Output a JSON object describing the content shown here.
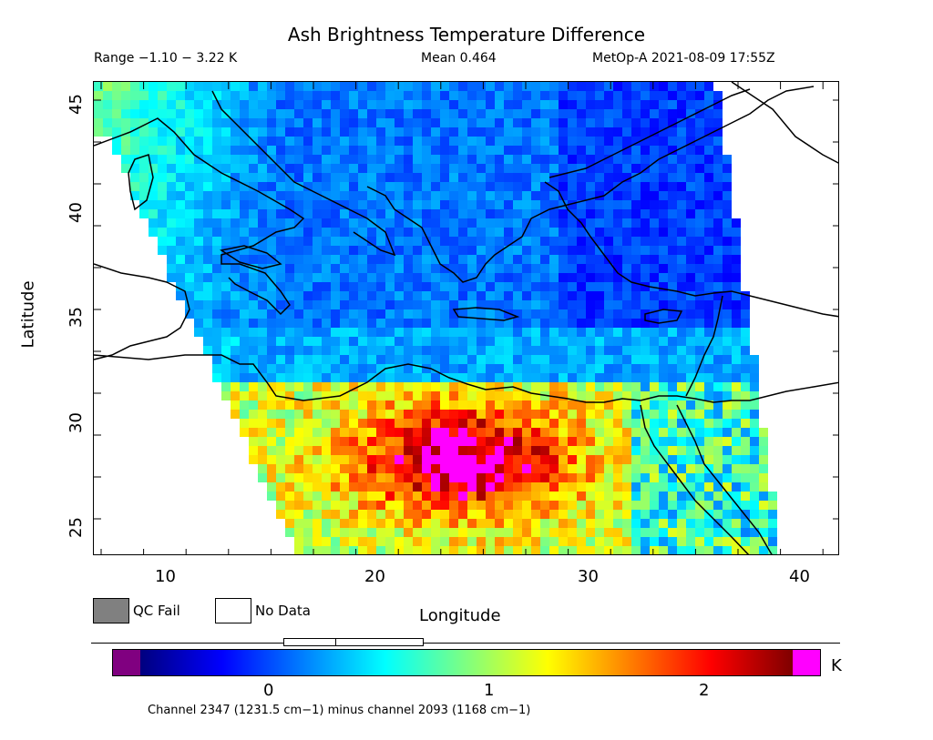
{
  "header": {
    "title": "Ash Brightness Temperature Difference",
    "range": "Range −1.10 − 3.22 K",
    "mean": "Mean 0.464",
    "satellite_time": "MetOp-A 2021-08-09 17:55Z"
  },
  "axes": {
    "x_label": "Longitude",
    "y_label": "Latitude",
    "x_ticks": [
      "10",
      "20",
      "30",
      "40"
    ],
    "y_ticks": [
      "45",
      "40",
      "35",
      "30",
      "25"
    ],
    "x_range": [
      6.7,
      41.8
    ],
    "y_range": [
      23.7,
      46.3
    ]
  },
  "legend": {
    "qc_fail": "QC Fail",
    "no_data": "No Data",
    "qc_fail_color": "#808080",
    "no_data_color": "#ffffff"
  },
  "colorbar": {
    "unit": "K",
    "ticks": [
      "0",
      "1",
      "2"
    ],
    "tick_values": [
      0,
      1,
      2
    ],
    "range": [
      -0.59,
      2.44
    ],
    "under_color": "#800080",
    "over_color": "#ff00ff",
    "caption": "Channel 2347 (1231.5 cm−1) minus channel 2093 (1168 cm−1)"
  }
}
